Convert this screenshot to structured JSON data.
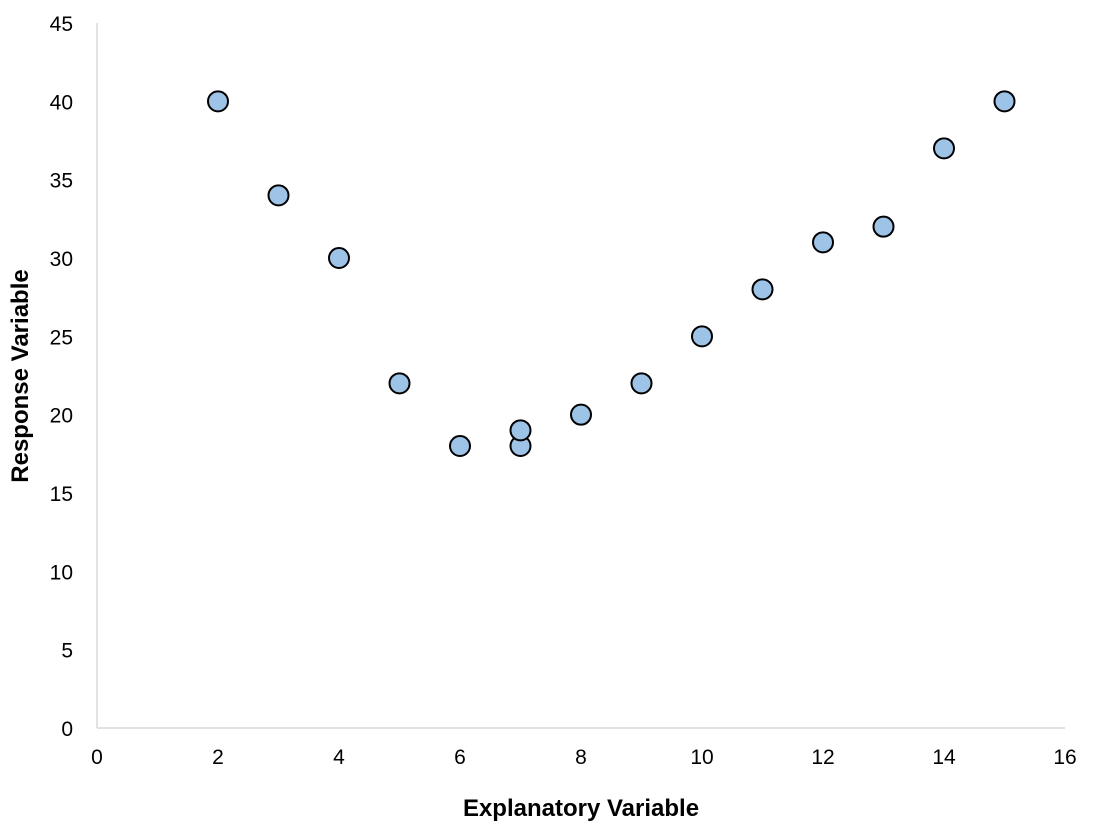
{
  "chart_data": {
    "type": "scatter",
    "title": "",
    "xlabel": "Explanatory Variable",
    "ylabel": "Response Variable",
    "xlim": [
      0,
      16
    ],
    "ylim": [
      0,
      45
    ],
    "xticks": [
      "0",
      "2",
      "4",
      "6",
      "8",
      "10",
      "12",
      "14",
      "16"
    ],
    "yticks": [
      "0",
      "5",
      "10",
      "15",
      "20",
      "25",
      "30",
      "35",
      "40",
      "45"
    ],
    "grid": false,
    "marker_color": "#9DC3E6",
    "marker_edge_color": "#000000",
    "axis_color": "#D9D9D9",
    "points": [
      {
        "x": 2,
        "y": 40
      },
      {
        "x": 3,
        "y": 34
      },
      {
        "x": 4,
        "y": 30
      },
      {
        "x": 5,
        "y": 22
      },
      {
        "x": 6,
        "y": 18
      },
      {
        "x": 7,
        "y": 18
      },
      {
        "x": 7,
        "y": 19
      },
      {
        "x": 8,
        "y": 20
      },
      {
        "x": 9,
        "y": 22
      },
      {
        "x": 10,
        "y": 25
      },
      {
        "x": 11,
        "y": 28
      },
      {
        "x": 12,
        "y": 31
      },
      {
        "x": 13,
        "y": 32
      },
      {
        "x": 14,
        "y": 37
      },
      {
        "x": 15,
        "y": 40
      }
    ]
  }
}
